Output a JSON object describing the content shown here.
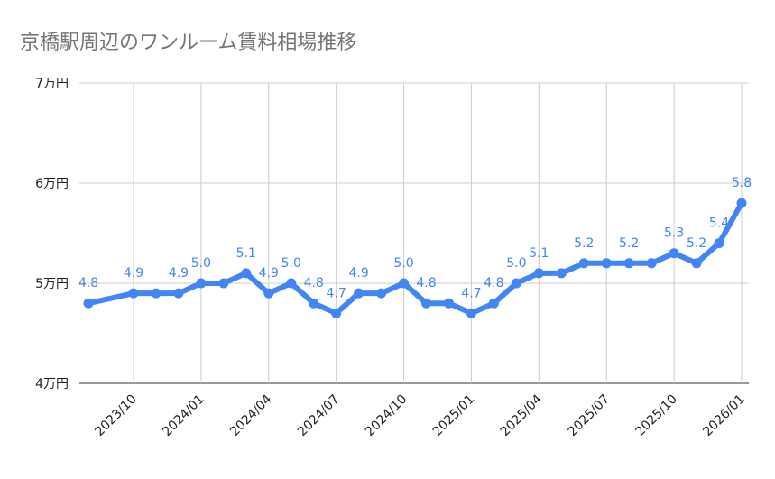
{
  "chart_data": {
    "type": "line",
    "title": "京橋駅周辺のワンルーム賃料相場推移",
    "xlabel": "",
    "ylabel": "",
    "ylim": [
      4,
      7
    ],
    "yticks": [
      4,
      5,
      6,
      7
    ],
    "ytick_labels": [
      "4万円",
      "5万円",
      "6万円",
      "7万円"
    ],
    "xtick_labels": [
      "2023/10",
      "2024/01",
      "2024/04",
      "2024/07",
      "2024/10",
      "2025/01",
      "2025/04",
      "2025/07",
      "2025/10",
      "2026/01"
    ],
    "grid": true,
    "color": "#4285f4",
    "x": [
      "2023/08",
      "2023/10",
      "2023/11",
      "2023/12",
      "2024/01",
      "2024/02",
      "2024/03",
      "2024/04",
      "2024/05",
      "2024/06",
      "2024/07",
      "2024/08",
      "2024/09",
      "2024/10",
      "2024/11",
      "2024/12",
      "2025/01",
      "2025/02",
      "2025/03",
      "2025/04",
      "2025/05",
      "2025/06",
      "2025/07",
      "2025/08",
      "2025/09",
      "2025/10",
      "2025/11",
      "2025/12",
      "2026/01"
    ],
    "values": [
      4.8,
      4.9,
      4.9,
      4.9,
      5.0,
      5.0,
      5.1,
      4.9,
      5.0,
      4.8,
      4.7,
      4.9,
      4.9,
      5.0,
      4.8,
      4.8,
      4.7,
      4.8,
      5.0,
      5.1,
      5.1,
      5.2,
      5.2,
      5.2,
      5.2,
      5.3,
      5.2,
      5.4,
      5.8
    ],
    "data_labels_shown": [
      true,
      true,
      false,
      true,
      true,
      false,
      true,
      true,
      true,
      true,
      true,
      true,
      false,
      true,
      true,
      false,
      true,
      true,
      true,
      true,
      false,
      true,
      false,
      true,
      false,
      true,
      true,
      true,
      true
    ]
  }
}
